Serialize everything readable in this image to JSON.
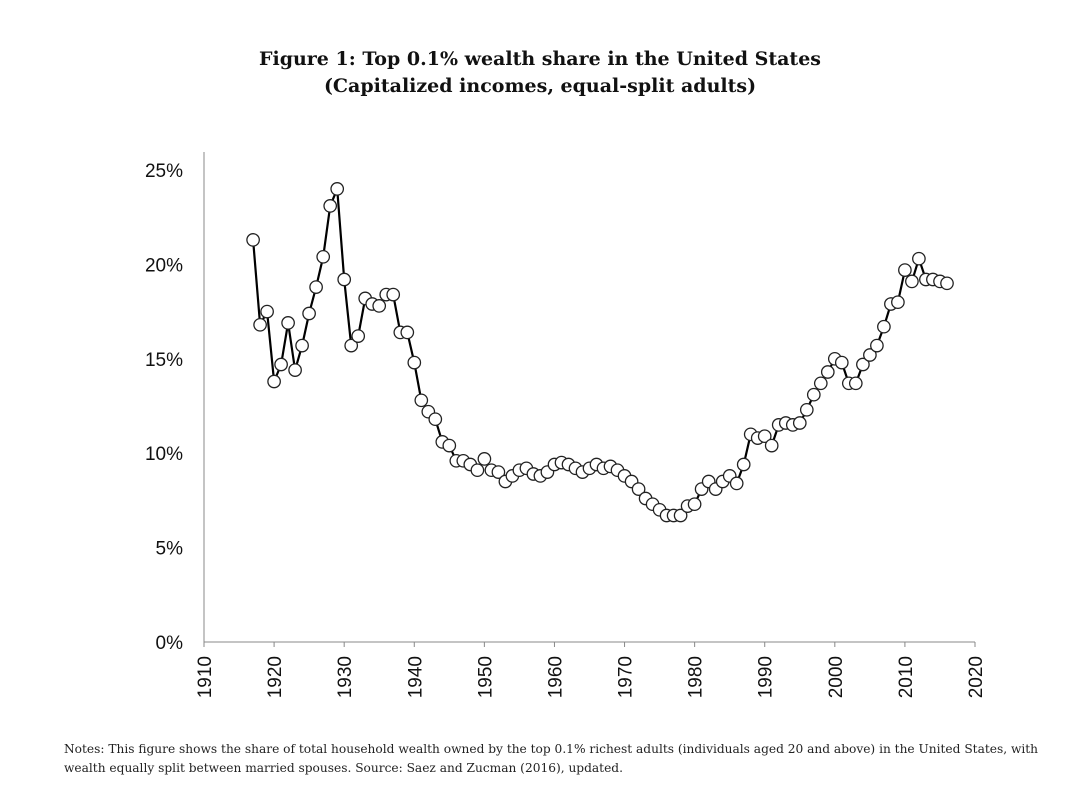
{
  "chart_data": {
    "type": "line",
    "title": "Figure 1: Top 0.1% wealth share in the United States",
    "subtitle": "(Capitalized incomes, equal-split adults)",
    "xlabel": "",
    "ylabel": "",
    "xlim": [
      1910,
      2020
    ],
    "ylim": [
      0,
      25
    ],
    "x_ticks": [
      1910,
      1920,
      1930,
      1940,
      1950,
      1960,
      1970,
      1980,
      1990,
      2000,
      2010,
      2020
    ],
    "y_ticks": [
      "0%",
      "5%",
      "10%",
      "15%",
      "20%",
      "25%"
    ],
    "y_tick_values": [
      0,
      5,
      10,
      15,
      20,
      25
    ],
    "series": [
      {
        "name": "Top 0.1% wealth share",
        "x": [
          1917,
          1918,
          1919,
          1920,
          1921,
          1922,
          1923,
          1924,
          1925,
          1926,
          1927,
          1928,
          1929,
          1930,
          1931,
          1932,
          1933,
          1934,
          1935,
          1936,
          1937,
          1938,
          1939,
          1940,
          1941,
          1942,
          1943,
          1944,
          1945,
          1946,
          1947,
          1948,
          1949,
          1950,
          1951,
          1952,
          1953,
          1954,
          1955,
          1956,
          1957,
          1958,
          1959,
          1960,
          1961,
          1962,
          1963,
          1964,
          1965,
          1966,
          1967,
          1968,
          1969,
          1970,
          1971,
          1972,
          1973,
          1974,
          1975,
          1976,
          1977,
          1978,
          1979,
          1980,
          1981,
          1982,
          1983,
          1984,
          1985,
          1986,
          1987,
          1988,
          1989,
          1990,
          1991,
          1992,
          1993,
          1994,
          1995,
          1996,
          1997,
          1998,
          1999,
          2000,
          2001,
          2002,
          2003,
          2004,
          2005,
          2006,
          2007,
          2008,
          2009,
          2010,
          2011,
          2012,
          2013,
          2014,
          2015,
          2016
        ],
        "values": [
          21.3,
          16.8,
          17.5,
          13.8,
          14.7,
          16.9,
          14.4,
          15.7,
          17.4,
          18.8,
          20.4,
          23.1,
          24.0,
          19.2,
          15.7,
          16.2,
          18.2,
          17.9,
          17.8,
          18.4,
          18.4,
          16.4,
          16.4,
          14.8,
          12.8,
          12.2,
          11.8,
          10.6,
          10.4,
          9.6,
          9.6,
          9.4,
          9.1,
          9.7,
          9.1,
          9.0,
          8.5,
          8.8,
          9.1,
          9.2,
          8.9,
          8.8,
          9.0,
          9.4,
          9.5,
          9.4,
          9.2,
          9.0,
          9.2,
          9.4,
          9.2,
          9.3,
          9.1,
          8.8,
          8.5,
          8.1,
          7.6,
          7.3,
          7.0,
          6.7,
          6.7,
          6.7,
          7.2,
          7.3,
          8.1,
          8.5,
          8.1,
          8.5,
          8.8,
          8.4,
          9.4,
          11.0,
          10.8,
          10.9,
          10.4,
          11.5,
          11.6,
          11.5,
          11.6,
          12.3,
          13.1,
          13.7,
          14.3,
          15.0,
          14.8,
          13.7,
          13.7,
          14.7,
          15.2,
          15.7,
          16.7,
          17.9,
          18.0,
          19.7,
          19.1,
          20.3,
          19.2,
          19.2,
          19.1,
          19.0
        ]
      }
    ]
  },
  "notes": "Notes: This figure shows the share of total household wealth owned by the top 0.1% richest adults (individuals aged 20 and above) in the United States, with wealth equally split between married spouses. Source: Saez and Zucman (2016), updated."
}
